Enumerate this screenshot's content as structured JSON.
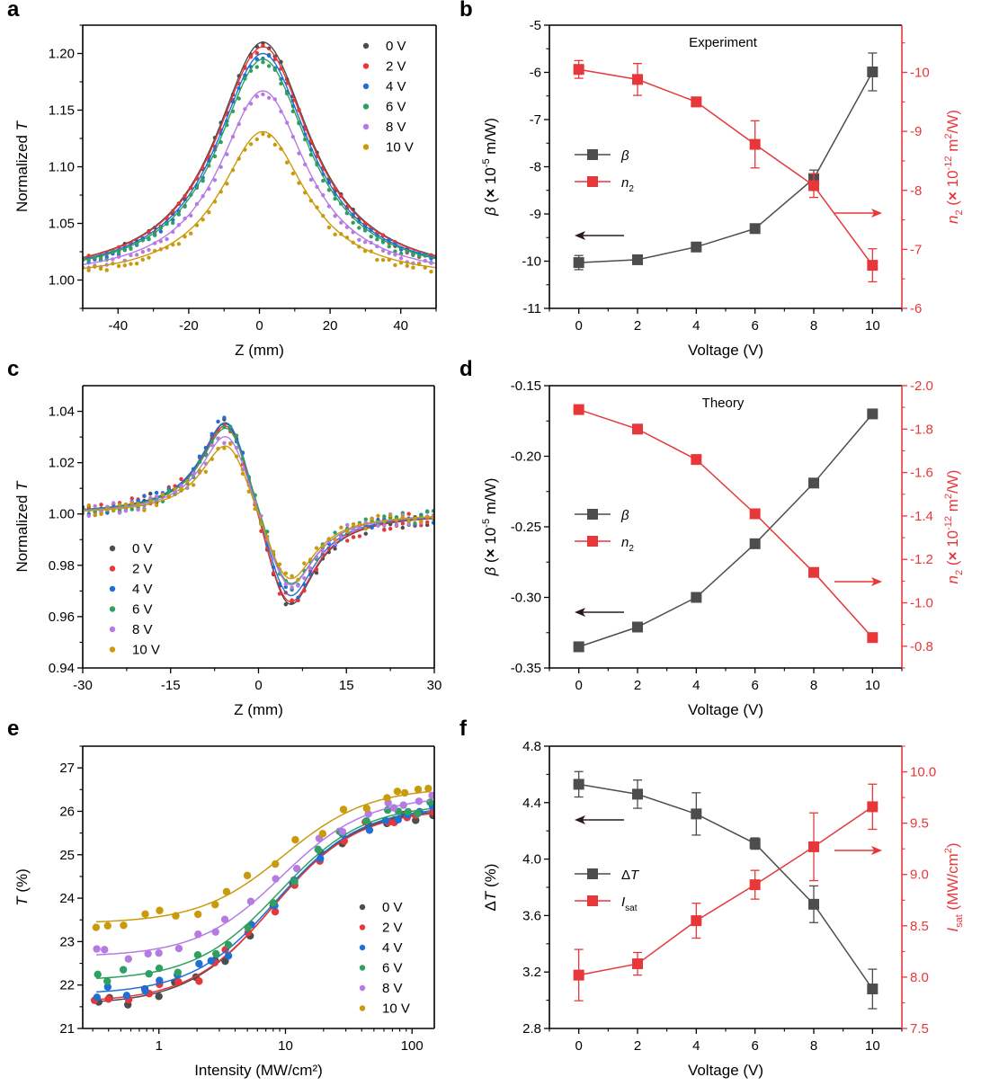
{
  "chart_data": [
    {
      "id": "a",
      "panel_label": "a",
      "type": "scatter",
      "subtype": "scatter-with-fit",
      "xlabel": "Z (mm)",
      "ylabel": "Normalized T",
      "xlim": [
        -50,
        50
      ],
      "ylim": [
        0.975,
        1.225
      ],
      "xticks": [
        -40,
        -20,
        0,
        20,
        40
      ],
      "yticks": [
        1.0,
        1.05,
        1.1,
        1.15,
        1.2
      ],
      "ytick_labels": [
        "1.00",
        "1.05",
        "1.10",
        "1.15",
        "1.20"
      ],
      "legend_position": "top-right",
      "model": "1 + A/(1+((z-z0)/w)^2)",
      "series": [
        {
          "name": "0 V",
          "color": "#4d4d4d",
          "peak": 1.21,
          "center": 1,
          "width": 16.5
        },
        {
          "name": "2 V",
          "color": "#e8373a",
          "peak": 1.206,
          "center": 1,
          "width": 16.5
        },
        {
          "name": "4 V",
          "color": "#1f6fd6",
          "peak": 1.2,
          "center": 1,
          "width": 16.2
        },
        {
          "name": "6 V",
          "color": "#2ea05f",
          "peak": 1.195,
          "center": 1,
          "width": 16.0
        },
        {
          "name": "8 V",
          "color": "#b57be3",
          "peak": 1.167,
          "center": 1,
          "width": 15.2
        },
        {
          "name": "10 V",
          "color": "#c99a0c",
          "peak": 1.131,
          "center": 1,
          "width": 14.8
        }
      ]
    },
    {
      "id": "b",
      "panel_label": "b",
      "type": "line",
      "subtype": "dual-axis-with-errorbars",
      "annotation": "Experiment",
      "xlabel": "Voltage (V)",
      "ylabel_left": "β (× 10⁻⁵ m/W)",
      "ylabel_right": "n₂ (× 10⁻¹² m²/W)",
      "x": [
        0,
        2,
        4,
        6,
        8,
        10
      ],
      "xlim": [
        -1,
        11
      ],
      "xticks": [
        0,
        2,
        4,
        6,
        8,
        10
      ],
      "ylim_left": [
        -11,
        -5
      ],
      "yticks_left": [
        -11,
        -10,
        -9,
        -8,
        -7,
        -6,
        -5
      ],
      "ylim_right": [
        -6,
        -10.8
      ],
      "yticks_right": [
        -6,
        -7,
        -8,
        -9,
        -10
      ],
      "legend_position": "middle-left",
      "series": [
        {
          "name": "β",
          "axis": "left",
          "color": "#4d4d4d",
          "values": [
            -10.03,
            -9.97,
            -9.7,
            -9.31,
            -8.25,
            -5.99
          ],
          "errors": [
            0.15,
            0.03,
            0.09,
            0.04,
            0.18,
            0.4
          ]
        },
        {
          "name": "n₂",
          "axis": "right",
          "color": "#e8373a",
          "values": [
            -10.05,
            -9.88,
            -9.5,
            -8.78,
            -8.08,
            -6.73
          ],
          "errors": [
            0.15,
            0.27,
            0.08,
            0.4,
            0.2,
            0.28
          ]
        }
      ],
      "arrows": [
        {
          "direction": "left",
          "color": "#2b1a1a"
        },
        {
          "direction": "right",
          "color": "#e8373a"
        }
      ]
    },
    {
      "id": "c",
      "panel_label": "c",
      "type": "scatter",
      "subtype": "scatter-with-fit",
      "xlabel": "Z (mm)",
      "ylabel": "Normalized T",
      "xlim": [
        -30,
        30
      ],
      "ylim": [
        0.94,
        1.05
      ],
      "xticks": [
        -30,
        -15,
        0,
        15,
        30
      ],
      "yticks": [
        0.94,
        0.96,
        0.98,
        1.0,
        1.02,
        1.04
      ],
      "ytick_labels": [
        "0.94",
        "0.96",
        "0.98",
        "1.00",
        "1.02",
        "1.04"
      ],
      "legend_position": "bottom-left",
      "series": [
        {
          "name": "0 V",
          "color": "#4d4d4d",
          "peak": 1.041,
          "valley": 0.959
        },
        {
          "name": "2 V",
          "color": "#e8373a",
          "peak": 1.04,
          "valley": 0.96
        },
        {
          "name": "4 V",
          "color": "#1f6fd6",
          "peak": 1.041,
          "valley": 0.962
        },
        {
          "name": "6 V",
          "color": "#2ea05f",
          "peak": 1.038,
          "valley": 0.967
        },
        {
          "name": "8 V",
          "color": "#b57be3",
          "peak": 1.035,
          "valley": 0.967
        },
        {
          "name": "10 V",
          "color": "#c99a0c",
          "peak": 1.031,
          "valley": 0.97
        }
      ]
    },
    {
      "id": "d",
      "panel_label": "d",
      "type": "line",
      "subtype": "dual-axis",
      "annotation": "Theory",
      "xlabel": "Voltage (V)",
      "ylabel_left": "β (× 10⁻⁵ m/W)",
      "ylabel_right": "n₂ (× 10⁻¹² m²/W)",
      "x": [
        0,
        2,
        4,
        6,
        8,
        10
      ],
      "xlim": [
        -1,
        11
      ],
      "xticks": [
        0,
        2,
        4,
        6,
        8,
        10
      ],
      "ylim_left": [
        -0.35,
        -0.15
      ],
      "yticks_left": [
        -0.35,
        -0.3,
        -0.25,
        -0.2,
        -0.15
      ],
      "ytick_labels_left": [
        "-0.35",
        "-0.30",
        "-0.25",
        "-0.20",
        "-0.15"
      ],
      "ylim_right": [
        -0.7,
        -2.0
      ],
      "yticks_right": [
        -0.8,
        -1.0,
        -1.2,
        -1.4,
        -1.6,
        -1.8,
        -2.0
      ],
      "ytick_labels_right": [
        "-0.8",
        "-1.0",
        "-1.2",
        "-1.4",
        "-1.6",
        "-1.8",
        "-2.0"
      ],
      "legend_position": "middle-left",
      "series": [
        {
          "name": "β",
          "axis": "left",
          "color": "#4d4d4d",
          "values": [
            -0.335,
            -0.321,
            -0.3,
            -0.262,
            -0.219,
            -0.17
          ]
        },
        {
          "name": "n₂",
          "axis": "right",
          "color": "#e8373a",
          "values": [
            -1.89,
            -1.8,
            -1.66,
            -1.41,
            -1.14,
            -0.84
          ]
        }
      ]
    },
    {
      "id": "e",
      "panel_label": "e",
      "type": "scatter",
      "subtype": "scatter-with-fit-logx",
      "xlabel": "Intensity (MW/cm²)",
      "ylabel": "T (%)",
      "xscale": "log",
      "xlim": [
        0.25,
        150
      ],
      "ylim": [
        21,
        27.5
      ],
      "xticks": [
        1,
        10,
        100
      ],
      "yticks": [
        21,
        22,
        23,
        24,
        25,
        26,
        27
      ],
      "legend_position": "bottom-right",
      "model": "T0 + dT * I/(I+Isat)",
      "series": [
        {
          "name": "0 V",
          "color": "#4d4d4d",
          "T_low": 21.55,
          "T_sat": 26.08,
          "Isat": 8.0
        },
        {
          "name": "2 V",
          "color": "#e8373a",
          "T_low": 21.6,
          "T_sat": 26.05,
          "Isat": 8.1
        },
        {
          "name": "4 V",
          "color": "#1f6fd6",
          "T_low": 21.78,
          "T_sat": 26.12,
          "Isat": 8.5
        },
        {
          "name": "6 V",
          "color": "#2ea05f",
          "T_low": 22.1,
          "T_sat": 26.17,
          "Isat": 8.9
        },
        {
          "name": "8 V",
          "color": "#b57be3",
          "T_low": 22.65,
          "T_sat": 26.35,
          "Isat": 9.3
        },
        {
          "name": "10 V",
          "color": "#c99a0c",
          "T_low": 23.42,
          "T_sat": 26.55,
          "Isat": 9.7
        }
      ]
    },
    {
      "id": "f",
      "panel_label": "f",
      "type": "line",
      "subtype": "dual-axis-with-errorbars",
      "xlabel": "Voltage (V)",
      "ylabel_left": "ΔT (%)",
      "ylabel_right": "Isat (MW/cm²)",
      "x": [
        0,
        2,
        4,
        6,
        8,
        10
      ],
      "xlim": [
        -1,
        11
      ],
      "xticks": [
        0,
        2,
        4,
        6,
        8,
        10
      ],
      "ylim_left": [
        2.8,
        4.8
      ],
      "yticks_left": [
        2.8,
        3.2,
        3.6,
        4.0,
        4.4,
        4.8
      ],
      "ytick_labels_left": [
        "2.8",
        "3.2",
        "3.6",
        "4.0",
        "4.4",
        "4.8"
      ],
      "ylim_right": [
        7.5,
        10.25
      ],
      "yticks_right": [
        7.5,
        8.0,
        8.5,
        9.0,
        9.5,
        10.0
      ],
      "ytick_labels_right": [
        "7.5",
        "8.0",
        "8.5",
        "9.0",
        "9.5",
        "10.0"
      ],
      "legend_position": "middle-left",
      "series": [
        {
          "name": "ΔT",
          "axis": "left",
          "color": "#4d4d4d",
          "values": [
            4.53,
            4.46,
            4.32,
            4.11,
            3.68,
            3.08
          ],
          "errors": [
            0.09,
            0.1,
            0.15,
            0.04,
            0.13,
            0.14
          ]
        },
        {
          "name": "Isat",
          "axis": "right",
          "color": "#e8373a",
          "values": [
            8.02,
            8.13,
            8.55,
            8.9,
            9.27,
            9.66
          ],
          "errors": [
            0.25,
            0.11,
            0.17,
            0.14,
            0.33,
            0.22
          ]
        }
      ]
    }
  ]
}
